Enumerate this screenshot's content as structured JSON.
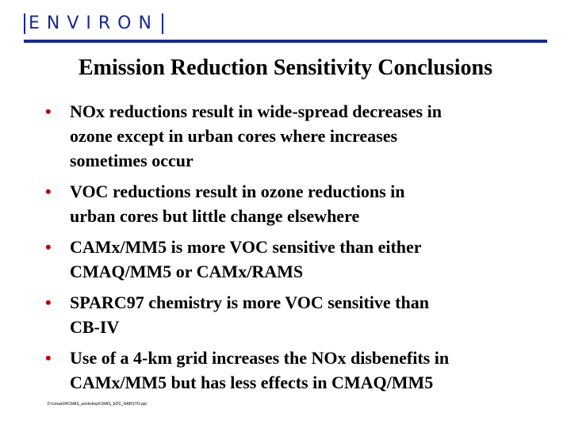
{
  "header": {
    "logo": "ENVIRON",
    "title": "Emission Reduction Sensitivity Conclusions"
  },
  "bullets": [
    {
      "lines": [
        "NOx reductions result in wide-spread decreases in",
        "ozone except in urban cores where increases",
        "sometimes occur"
      ]
    },
    {
      "lines": [
        "VOC reductions result in ozone reductions in",
        "urban cores but little change elsewhere"
      ]
    },
    {
      "lines": [
        "CAMx/MM5 is more VOC sensitive than either",
        "CMAQ/MM5 or CAMx/RAMS"
      ]
    },
    {
      "lines": [
        "SPARC97 chemistry is more VOC sensitive than",
        "CB-IV"
      ]
    },
    {
      "lines": [
        "Use of a 4-km grid increases the NOx disbenefits in",
        "CAMx/MM5 but has less effects in CMAQ/MM5"
      ]
    }
  ],
  "footer": {
    "path": "D:\\cmas04\\CMAS_workshop\\CMAS_EDC_NARSTO.ppt"
  }
}
